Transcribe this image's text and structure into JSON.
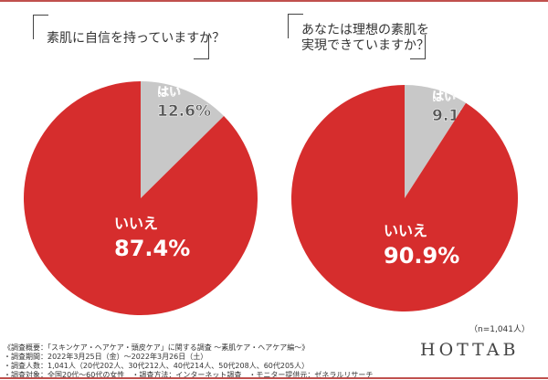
{
  "chart_data": [
    {
      "type": "pie",
      "title": "素肌に自信を持っていますか？",
      "slices": [
        {
          "label": "はい",
          "value": 12.6,
          "value_label": "12.6%",
          "color": "#c8c8c8"
        },
        {
          "label": "いいえ",
          "value": 87.4,
          "value_label": "87.4%",
          "color": "#d62d2d"
        }
      ]
    },
    {
      "type": "pie",
      "title": "あなたは理想の素肌を実現できていますか？",
      "title_lines": [
        "あなたは理想の素肌を",
        "実現できていますか？"
      ],
      "slices": [
        {
          "label": "はい",
          "value": 9.1,
          "value_label": "9.1%",
          "color": "#c8c8c8"
        },
        {
          "label": "いいえ",
          "value": 90.9,
          "value_label": "90.9%",
          "color": "#d62d2d"
        }
      ]
    }
  ],
  "sample_size": "（n=1,041人）",
  "footnotes": [
    "《調査概要：「スキンケア・ヘアケア・頭皮ケア」に関する調査 ～素肌ケア・ヘアケア編～》",
    "・調査期間：2022年3月25日（金）～2022年3月26日（土）",
    "・調査人数：1,041人（20代202人、30代212人、40代214人、50代208人、60代205人）",
    "・調査対象：全国20代～60代の女性　・調査方法：インターネット調査　・モニター提供元：ゼネラルリサーチ"
  ],
  "logo": "HOTTAB"
}
